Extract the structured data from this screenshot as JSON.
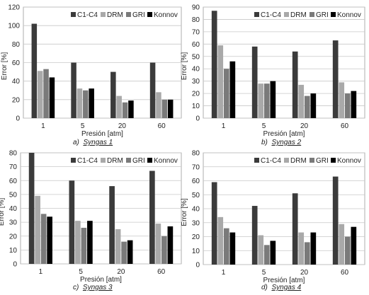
{
  "chart_data": [
    {
      "type": "bar",
      "panel_label": "a)",
      "caption": "Syngas 1",
      "categories": [
        "1",
        "5",
        "20",
        "60"
      ],
      "xlabel": "Presión [atm]",
      "ylabel": "Error [%]",
      "ylim": [
        0,
        120
      ],
      "yticks": [
        "0",
        "20",
        "40",
        "60",
        "80",
        "100",
        "120"
      ],
      "legend_position": "top-right",
      "series": [
        {
          "name": "C1-C4",
          "color": "#3b3b3b",
          "values": [
            102,
            60,
            50,
            60
          ]
        },
        {
          "name": "DRM",
          "color": "#a9a9a9",
          "values": [
            51,
            32,
            24,
            28
          ]
        },
        {
          "name": "GRI",
          "color": "#7a7a7a",
          "values": [
            53,
            30,
            17,
            20
          ]
        },
        {
          "name": "Konnov",
          "color": "#000000",
          "values": [
            44,
            32,
            19,
            20
          ]
        }
      ]
    },
    {
      "type": "bar",
      "panel_label": "b)",
      "caption": "Syngas 2",
      "categories": [
        "1",
        "5",
        "20",
        "60"
      ],
      "xlabel": "Presión [atm]",
      "ylabel": "Error [%]",
      "ylim": [
        0,
        90
      ],
      "yticks": [
        "0",
        "10",
        "20",
        "30",
        "40",
        "50",
        "60",
        "70",
        "80",
        "90"
      ],
      "legend_position": "top-right",
      "series": [
        {
          "name": "C1-C4",
          "color": "#3b3b3b",
          "values": [
            87,
            58,
            54,
            63
          ]
        },
        {
          "name": "DRM",
          "color": "#a9a9a9",
          "values": [
            59,
            28,
            27,
            29
          ]
        },
        {
          "name": "GRI",
          "color": "#7a7a7a",
          "values": [
            40,
            28,
            18,
            20
          ]
        },
        {
          "name": "Konnov",
          "color": "#000000",
          "values": [
            46,
            30,
            20,
            22
          ]
        }
      ]
    },
    {
      "type": "bar",
      "panel_label": "c)",
      "caption": "Syngas 3",
      "categories": [
        "1",
        "5",
        "20",
        "60"
      ],
      "xlabel": "Presión [atm]",
      "ylabel": "Error [%]",
      "ylim": [
        0,
        80
      ],
      "yticks": [
        "0",
        "10",
        "20",
        "30",
        "40",
        "50",
        "60",
        "70",
        "80"
      ],
      "legend_position": "top-right",
      "series": [
        {
          "name": "C1-C4",
          "color": "#3b3b3b",
          "values": [
            80,
            60,
            56,
            67
          ]
        },
        {
          "name": "DRM",
          "color": "#a9a9a9",
          "values": [
            49,
            31,
            25,
            29
          ]
        },
        {
          "name": "GRI",
          "color": "#7a7a7a",
          "values": [
            36,
            26,
            16,
            20
          ]
        },
        {
          "name": "Konnov",
          "color": "#000000",
          "values": [
            34,
            31,
            17,
            27
          ]
        }
      ]
    },
    {
      "type": "bar",
      "panel_label": "d)",
      "caption": "Syngas 4",
      "categories": [
        "1",
        "5",
        "20",
        "60"
      ],
      "xlabel": "Presión [atm]",
      "ylabel": "Error [%]",
      "ylim": [
        0,
        80
      ],
      "yticks": [
        "0",
        "10",
        "20",
        "30",
        "40",
        "50",
        "60",
        "70",
        "80"
      ],
      "legend_position": "top-right",
      "series": [
        {
          "name": "C1-C4",
          "color": "#3b3b3b",
          "values": [
            59,
            42,
            51,
            63
          ]
        },
        {
          "name": "DRM",
          "color": "#a9a9a9",
          "values": [
            34,
            21,
            23,
            29
          ]
        },
        {
          "name": "GRI",
          "color": "#7a7a7a",
          "values": [
            26,
            14,
            16,
            20
          ]
        },
        {
          "name": "Konnov",
          "color": "#000000",
          "values": [
            23,
            17,
            23,
            27
          ]
        }
      ]
    }
  ]
}
